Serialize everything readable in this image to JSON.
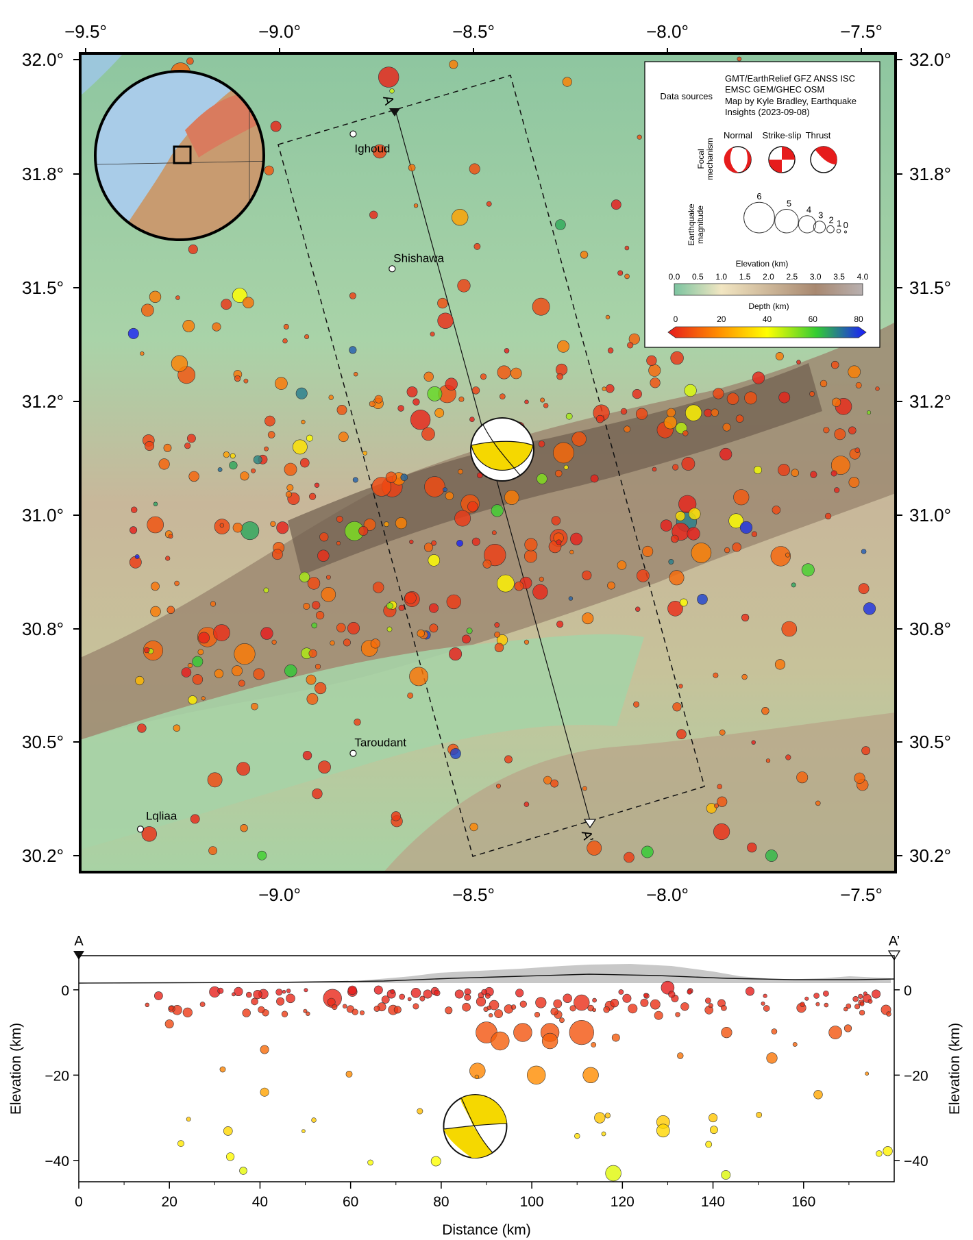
{
  "map": {
    "lon_labels": [
      "−9.5°",
      "−9.0°",
      "−8.5°",
      "−8.0°",
      "−7.5°"
    ],
    "lon_values": [
      -9.5,
      -9.0,
      -8.5,
      -8.0,
      -7.5
    ],
    "lat_labels": [
      "32.0°",
      "31.8°",
      "31.5°",
      "31.2°",
      "31.0°",
      "30.8°",
      "30.5°",
      "30.2°"
    ],
    "lat_values": [
      32.0,
      31.8,
      31.5,
      31.2,
      31.0,
      30.8,
      30.5,
      30.2
    ],
    "cities": [
      {
        "name": "Ighoud",
        "lon": -8.88,
        "lat": 31.87
      },
      {
        "name": "Shishawa",
        "lon": -8.77,
        "lat": 31.55
      },
      {
        "name": "Taroudant",
        "lon": -8.88,
        "lat": 30.47
      },
      {
        "name": "Lqliaa",
        "lon": -9.48,
        "lat": 30.27
      }
    ],
    "profile_start_label": "A",
    "profile_end_label": "A’"
  },
  "legend": {
    "data_sources_title": "Data sources",
    "data_sources_text": [
      "GMT/EarthRelief GFZ ANSS ISC",
      "EMSC GEM/GHEC OSM",
      "Map by Kyle Bradley, Earthquake",
      "Insights (2023-09-08)"
    ],
    "focal_title_line1": "Focal",
    "focal_title_line2": "mechanism",
    "focal_types": [
      "Normal",
      "Strike-slip",
      "Thrust"
    ],
    "magnitude_title_line1": "Earthquake",
    "magnitude_title_line2": "magnitude",
    "magnitude_values": [
      "6",
      "5",
      "4",
      "3",
      "2",
      "1",
      "0"
    ],
    "elevation_title": "Elevation (km)",
    "elevation_ticks": [
      "0.0",
      "0.5",
      "1.0",
      "1.5",
      "2.0",
      "2.5",
      "3.0",
      "3.5",
      "4.0"
    ],
    "depth_title": "Depth (km)",
    "depth_ticks": [
      "0",
      "20",
      "40",
      "60",
      "80"
    ],
    "colors": {
      "depth_0": "#e61c1c",
      "depth_20": "#ff8c00",
      "depth_40": "#ffff00",
      "depth_60": "#33cc33",
      "depth_80": "#1a1aff",
      "elev_0": "#7cc4a0",
      "elev_1": "#f2e6c2",
      "elev_3": "#a88870",
      "elev_4": "#b8b0b0"
    }
  },
  "chart_data": {
    "type": "scatter",
    "title": "",
    "xlabel": "Distance (km)",
    "ylabel": "Elevation (km)",
    "xlim": [
      0,
      180
    ],
    "ylim": [
      -45,
      8
    ],
    "x_ticks": [
      "0",
      "20",
      "40",
      "60",
      "80",
      "100",
      "120",
      "140",
      "160"
    ],
    "y_ticks": [
      "0",
      "−20",
      "−40"
    ],
    "focal_mechanism": {
      "x": 87.5,
      "depth": -32
    },
    "points": [
      {
        "x": 56,
        "y": -2,
        "mag": 4.5
      },
      {
        "x": 30,
        "y": -0.5,
        "mag": 3
      },
      {
        "x": 69,
        "y": -1,
        "mag": 2.5
      },
      {
        "x": 90,
        "y": -10,
        "mag": 5
      },
      {
        "x": 93,
        "y": -12,
        "mag": 4.5
      },
      {
        "x": 98,
        "y": -10,
        "mag": 4.5
      },
      {
        "x": 104,
        "y": -10,
        "mag": 4.5
      },
      {
        "x": 104,
        "y": -12,
        "mag": 4
      },
      {
        "x": 111,
        "y": -10,
        "mag": 5.5
      },
      {
        "x": 111,
        "y": -3,
        "mag": 4
      },
      {
        "x": 102,
        "y": -3,
        "mag": 3
      },
      {
        "x": 88,
        "y": -19,
        "mag": 4
      },
      {
        "x": 101,
        "y": -20,
        "mag": 4.5
      },
      {
        "x": 113,
        "y": -20,
        "mag": 4
      },
      {
        "x": 130,
        "y": 0.5,
        "mag": 3.5
      },
      {
        "x": 143,
        "y": -10,
        "mag": 3
      },
      {
        "x": 167,
        "y": -10,
        "mag": 3.5
      },
      {
        "x": 153,
        "y": -16,
        "mag": 3
      },
      {
        "x": 128,
        "y": -6,
        "mag": 2.5
      },
      {
        "x": 41,
        "y": -14,
        "mag": 2.5
      },
      {
        "x": 41,
        "y": -24,
        "mag": 2.5
      },
      {
        "x": 115,
        "y": -30,
        "mag": 3
      },
      {
        "x": 129,
        "y": -31,
        "mag": 3.5
      },
      {
        "x": 129,
        "y": -33,
        "mag": 3.5
      },
      {
        "x": 140,
        "y": -30,
        "mag": 2.5
      },
      {
        "x": 118,
        "y": -43,
        "mag": 4
      },
      {
        "x": 20,
        "y": -8,
        "mag": 2.5
      },
      {
        "x": 77,
        "y": -1,
        "mag": 2.5
      },
      {
        "x": 84,
        "y": -1,
        "mag": 2.5
      },
      {
        "x": 121,
        "y": -2,
        "mag": 2.5
      },
      {
        "x": 174,
        "y": -2,
        "mag": 2.5
      },
      {
        "x": 176,
        "y": -1,
        "mag": 2.5
      }
    ]
  }
}
